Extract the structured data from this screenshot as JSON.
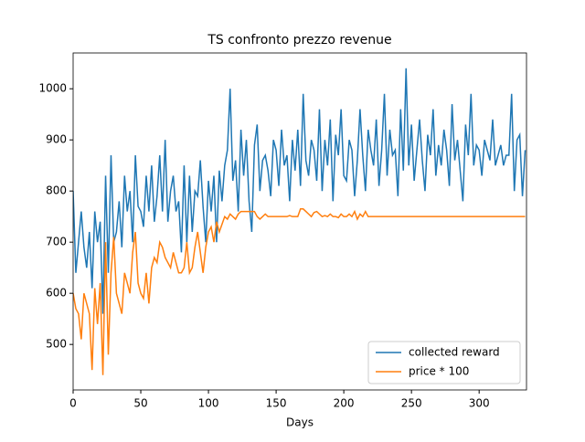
{
  "chart_data": {
    "type": "line",
    "title": "TS confronto prezzo revenue",
    "x_label": "Days",
    "x": [
      0,
      2,
      4,
      6,
      8,
      10,
      12,
      14,
      16,
      18,
      20,
      22,
      24,
      26,
      28,
      30,
      32,
      34,
      36,
      38,
      40,
      42,
      44,
      46,
      48,
      50,
      52,
      54,
      56,
      58,
      60,
      62,
      64,
      66,
      68,
      70,
      72,
      74,
      76,
      78,
      80,
      82,
      84,
      86,
      88,
      90,
      92,
      94,
      96,
      98,
      100,
      102,
      104,
      106,
      108,
      110,
      112,
      114,
      116,
      118,
      120,
      122,
      124,
      126,
      128,
      130,
      132,
      134,
      136,
      138,
      140,
      142,
      144,
      146,
      148,
      150,
      152,
      154,
      156,
      158,
      160,
      162,
      164,
      166,
      168,
      170,
      172,
      174,
      176,
      178,
      180,
      182,
      184,
      186,
      188,
      190,
      192,
      194,
      196,
      198,
      200,
      202,
      204,
      206,
      208,
      210,
      212,
      214,
      216,
      218,
      220,
      222,
      224,
      226,
      228,
      230,
      232,
      234,
      236,
      238,
      240,
      242,
      244,
      246,
      248,
      250,
      252,
      254,
      256,
      258,
      260,
      262,
      264,
      266,
      268,
      270,
      272,
      274,
      276,
      278,
      280,
      282,
      284,
      286,
      288,
      290,
      292,
      294,
      296,
      298,
      300,
      302,
      304,
      306,
      308,
      310,
      312,
      314,
      316,
      318,
      320,
      322,
      324,
      326,
      328,
      330,
      332,
      334
    ],
    "series": [
      {
        "name": "collected reward",
        "color": "#1f77b4",
        "values": [
          800,
          640,
          700,
          760,
          690,
          650,
          720,
          610,
          760,
          700,
          740,
          560,
          830,
          640,
          870,
          700,
          720,
          780,
          690,
          830,
          760,
          800,
          700,
          870,
          770,
          760,
          730,
          830,
          760,
          850,
          740,
          790,
          870,
          760,
          900,
          740,
          800,
          830,
          760,
          780,
          680,
          850,
          700,
          830,
          720,
          800,
          790,
          860,
          770,
          700,
          820,
          760,
          830,
          700,
          840,
          780,
          850,
          880,
          1000,
          820,
          860,
          760,
          920,
          830,
          900,
          780,
          720,
          890,
          930,
          800,
          860,
          870,
          840,
          790,
          900,
          880,
          810,
          920,
          850,
          870,
          780,
          900,
          840,
          920,
          810,
          990,
          860,
          830,
          900,
          880,
          820,
          960,
          800,
          900,
          850,
          940,
          780,
          910,
          870,
          960,
          830,
          820,
          900,
          880,
          790,
          860,
          960,
          870,
          800,
          920,
          880,
          850,
          940,
          810,
          880,
          990,
          830,
          920,
          870,
          880,
          790,
          960,
          840,
          1040,
          850,
          930,
          820,
          880,
          940,
          860,
          800,
          910,
          870,
          960,
          830,
          890,
          850,
          920,
          880,
          810,
          970,
          860,
          900,
          840,
          780,
          930,
          870,
          990,
          850,
          890,
          880,
          830,
          900,
          880,
          860,
          940,
          850,
          870,
          890,
          850,
          870,
          870,
          990,
          800,
          900,
          910,
          790,
          880
        ]
      },
      {
        "name": "price * 100",
        "color": "#ff7f0e",
        "values": [
          600,
          570,
          560,
          510,
          600,
          580,
          560,
          450,
          610,
          540,
          620,
          440,
          700,
          480,
          640,
          710,
          600,
          580,
          560,
          640,
          620,
          600,
          680,
          720,
          620,
          600,
          590,
          640,
          580,
          650,
          670,
          660,
          700,
          690,
          670,
          660,
          650,
          680,
          660,
          640,
          640,
          650,
          700,
          640,
          650,
          690,
          720,
          680,
          640,
          690,
          720,
          730,
          700,
          740,
          720,
          735,
          750,
          745,
          755,
          750,
          745,
          755,
          760,
          760,
          760,
          760,
          760,
          760,
          750,
          745,
          750,
          755,
          750,
          750,
          750,
          750,
          750,
          750,
          750,
          750,
          752,
          750,
          750,
          750,
          765,
          765,
          760,
          755,
          750,
          758,
          760,
          755,
          750,
          752,
          750,
          755,
          750,
          750,
          748,
          755,
          750,
          750,
          755,
          750,
          760,
          745,
          755,
          750,
          760,
          750,
          750,
          750,
          750,
          750,
          750,
          750,
          750,
          750,
          750,
          750,
          750,
          750,
          750,
          750,
          750,
          750,
          750,
          750,
          750,
          750,
          750,
          750,
          750,
          750,
          750,
          750,
          750,
          750,
          750,
          750,
          750,
          750,
          750,
          750,
          750,
          750,
          750,
          750,
          750,
          750,
          750,
          750,
          750,
          750,
          750,
          750,
          750,
          750,
          750,
          750,
          750,
          750,
          750,
          750,
          750,
          750,
          750,
          750
        ]
      }
    ],
    "xlim": [
      0,
      335
    ],
    "ylim": [
      411,
      1070
    ],
    "xticks": [
      0,
      50,
      100,
      150,
      200,
      250,
      300
    ],
    "yticks": [
      500,
      600,
      700,
      800,
      900,
      1000
    ],
    "legend": "lower right"
  }
}
